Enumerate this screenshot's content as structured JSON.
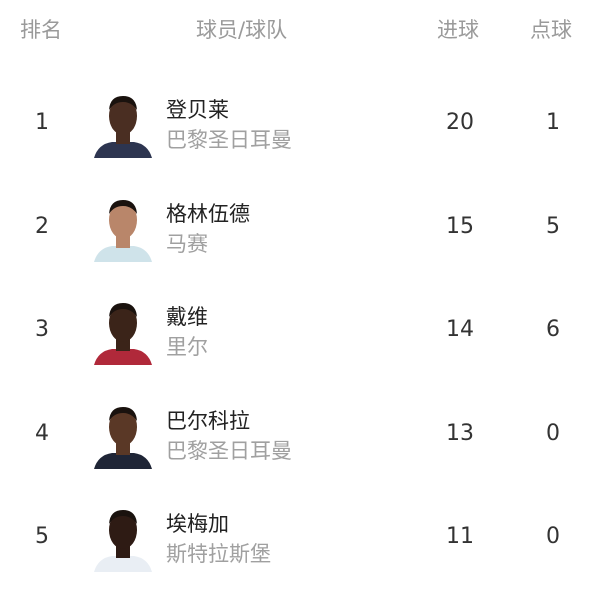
{
  "header": {
    "rank": "排名",
    "player_team": "球员/球队",
    "goals": "进球",
    "penalties": "点球"
  },
  "rows": [
    {
      "rank": "1",
      "name": "登贝莱",
      "team": "巴黎圣日耳曼",
      "goals": "20",
      "penalties": "1",
      "skin": "#4a2e22",
      "shirt": "#2d3550"
    },
    {
      "rank": "2",
      "name": "格林伍德",
      "team": "马赛",
      "goals": "15",
      "penalties": "5",
      "skin": "#b9866a",
      "shirt": "#cfe3ea"
    },
    {
      "rank": "3",
      "name": "戴维",
      "team": "里尔",
      "goals": "14",
      "penalties": "6",
      "skin": "#3b2419",
      "shirt": "#b0293a"
    },
    {
      "rank": "4",
      "name": "巴尔科拉",
      "team": "巴黎圣日耳曼",
      "goals": "13",
      "penalties": "0",
      "skin": "#5a3826",
      "shirt": "#1f2536"
    },
    {
      "rank": "5",
      "name": "埃梅加",
      "team": "斯特拉斯堡",
      "goals": "11",
      "penalties": "0",
      "skin": "#2e1b14",
      "shirt": "#e9eef4"
    }
  ]
}
